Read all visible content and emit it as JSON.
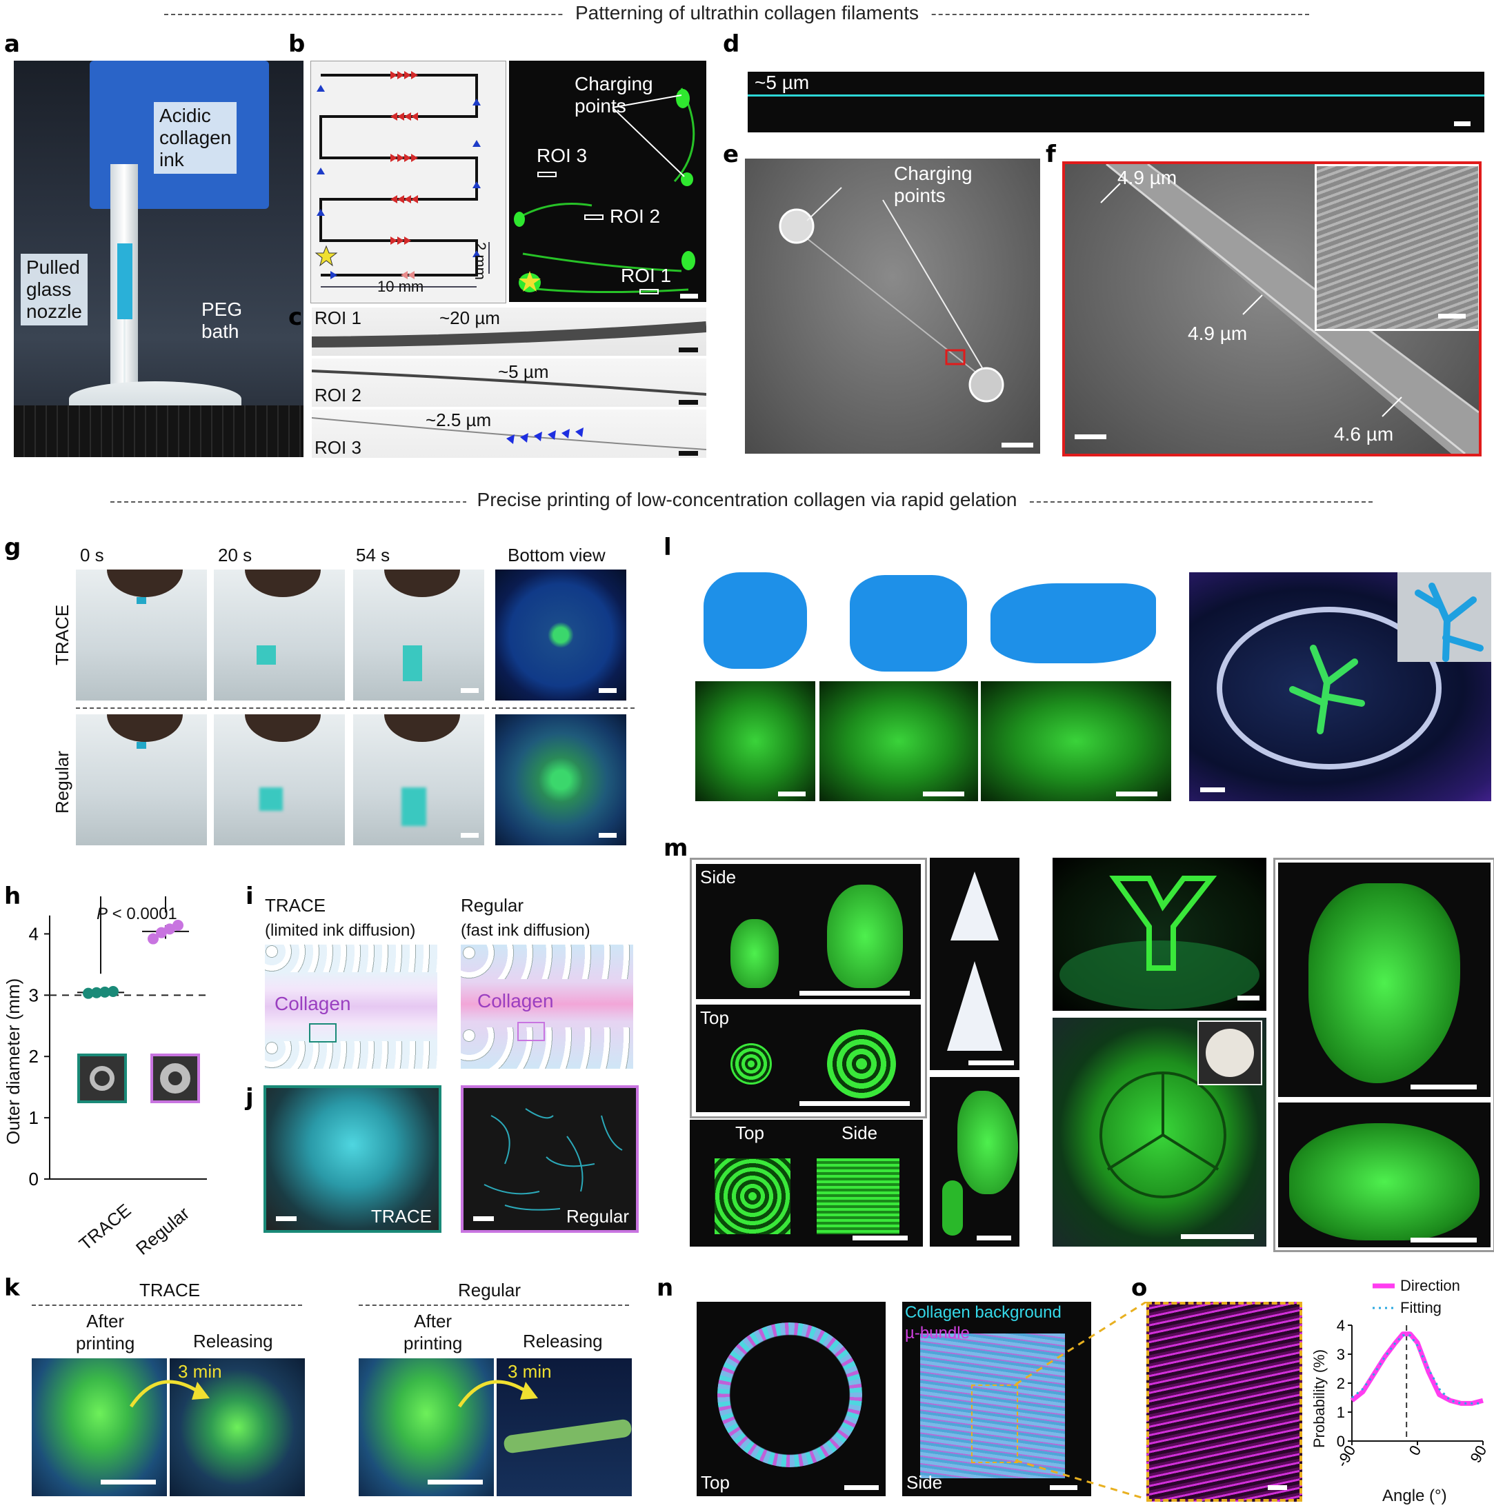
{
  "sections": {
    "top": "Patterning of ultrathin collagen filaments",
    "middle": "Precise printing of low-concentration collagen via rapid gelation"
  },
  "panels": {
    "a": "a",
    "b": "b",
    "c": "c",
    "d": "d",
    "e": "e",
    "f": "f",
    "g": "g",
    "h": "h",
    "i": "i",
    "j": "j",
    "k": "k",
    "l": "l",
    "m": "m",
    "n": "n",
    "o": "o"
  },
  "a": {
    "ink": "Acidic collagen ink",
    "ink_l1": "Acidic",
    "ink_l2": "collagen",
    "ink_l3": "ink",
    "nozzle_l1": "Pulled",
    "nozzle_l2": "glass",
    "nozzle_l3": "nozzle",
    "bath_l1": "PEG",
    "bath_l2": "bath"
  },
  "b": {
    "dim_vertical": "2 mm",
    "dim_horizontal": "10 mm",
    "charging_l1": "Charging",
    "charging_l2": "points",
    "roi3": "ROI 3",
    "roi2": "ROI 2",
    "roi1": "ROI 1"
  },
  "c": {
    "rows": [
      {
        "roi": "ROI 1",
        "size": "~20 µm"
      },
      {
        "roi": "ROI 2",
        "size": "~5 µm"
      },
      {
        "roi": "ROI 3",
        "size": "~2.5 µm"
      }
    ]
  },
  "d": {
    "size": "~5 µm"
  },
  "e": {
    "charging_l1": "Charging",
    "charging_l2": "points"
  },
  "f": {
    "m1": "4.9 µm",
    "m2": "4.9 µm",
    "m3": "4.6 µm"
  },
  "g": {
    "times": [
      "0 s",
      "20 s",
      "54 s"
    ],
    "bottom": "Bottom view",
    "rows": [
      "TRACE",
      "Regular"
    ]
  },
  "h": {
    "ylabel": "Outer diameter (mm)",
    "pvalue_p": "P",
    "pvalue_rest": " < 0.0001",
    "yticks": [
      "0",
      "1",
      "2",
      "3",
      "4"
    ],
    "categories": [
      "TRACE",
      "Regular"
    ]
  },
  "chart_data": {
    "type": "scatter",
    "title": "",
    "xlabel": "",
    "ylabel": "Outer diameter (mm)",
    "ylim": [
      0,
      4.5
    ],
    "categories": [
      "TRACE",
      "Regular"
    ],
    "series": [
      {
        "name": "TRACE",
        "values": [
          3.03,
          3.04,
          3.05,
          3.06
        ],
        "color": "#1a8a78"
      },
      {
        "name": "Regular",
        "values": [
          3.92,
          4.02,
          4.08,
          4.14
        ],
        "color": "#c874e0"
      }
    ],
    "reference_line": 3,
    "annotation": "P < 0.0001"
  },
  "i": {
    "trace_title": "TRACE",
    "trace_sub": "(limited ink diffusion)",
    "reg_title": "Regular",
    "reg_sub": "(fast ink diffusion)",
    "collagen": "Collagen"
  },
  "j": {
    "trace": "TRACE",
    "regular": "Regular"
  },
  "k": {
    "trace_title": "TRACE",
    "reg_title": "Regular",
    "after_l1": "After",
    "after_l2": "printing",
    "releasing": "Releasing",
    "time": "3 min"
  },
  "m": {
    "side": "Side",
    "top": "Top",
    "top2": "Top",
    "side2": "Side"
  },
  "n": {
    "top": "Top",
    "side": "Side",
    "legend_bg": "Collagen background",
    "legend_bundle": "µ-bundle"
  },
  "o": {
    "legend_direction": "Direction",
    "legend_fitting": "Fitting",
    "ylabel": "Probability (%)",
    "xlabel": "Angle (°)",
    "yticks": [
      "0",
      "1",
      "2",
      "3",
      "4"
    ],
    "xticks": [
      "-90",
      "0",
      "90"
    ],
    "colors": {
      "direction": "#ff3df0",
      "fitting": "#2aa8e0"
    }
  },
  "chart_data_o": {
    "type": "line",
    "xlim": [
      -90,
      90
    ],
    "ylim": [
      0,
      4
    ],
    "x": [
      -90,
      -75,
      -60,
      -45,
      -30,
      -20,
      -10,
      0,
      15,
      30,
      45,
      60,
      75,
      90
    ],
    "series": [
      {
        "name": "Direction",
        "values": [
          1.4,
          1.7,
          2.3,
          2.9,
          3.4,
          3.7,
          3.7,
          3.4,
          2.4,
          1.6,
          1.4,
          1.3,
          1.3,
          1.4
        ]
      },
      {
        "name": "Fitting",
        "values": [
          1.5,
          1.8,
          2.3,
          2.9,
          3.4,
          3.65,
          3.65,
          3.3,
          2.5,
          1.8,
          1.4,
          1.3,
          1.3,
          1.3
        ]
      }
    ]
  }
}
